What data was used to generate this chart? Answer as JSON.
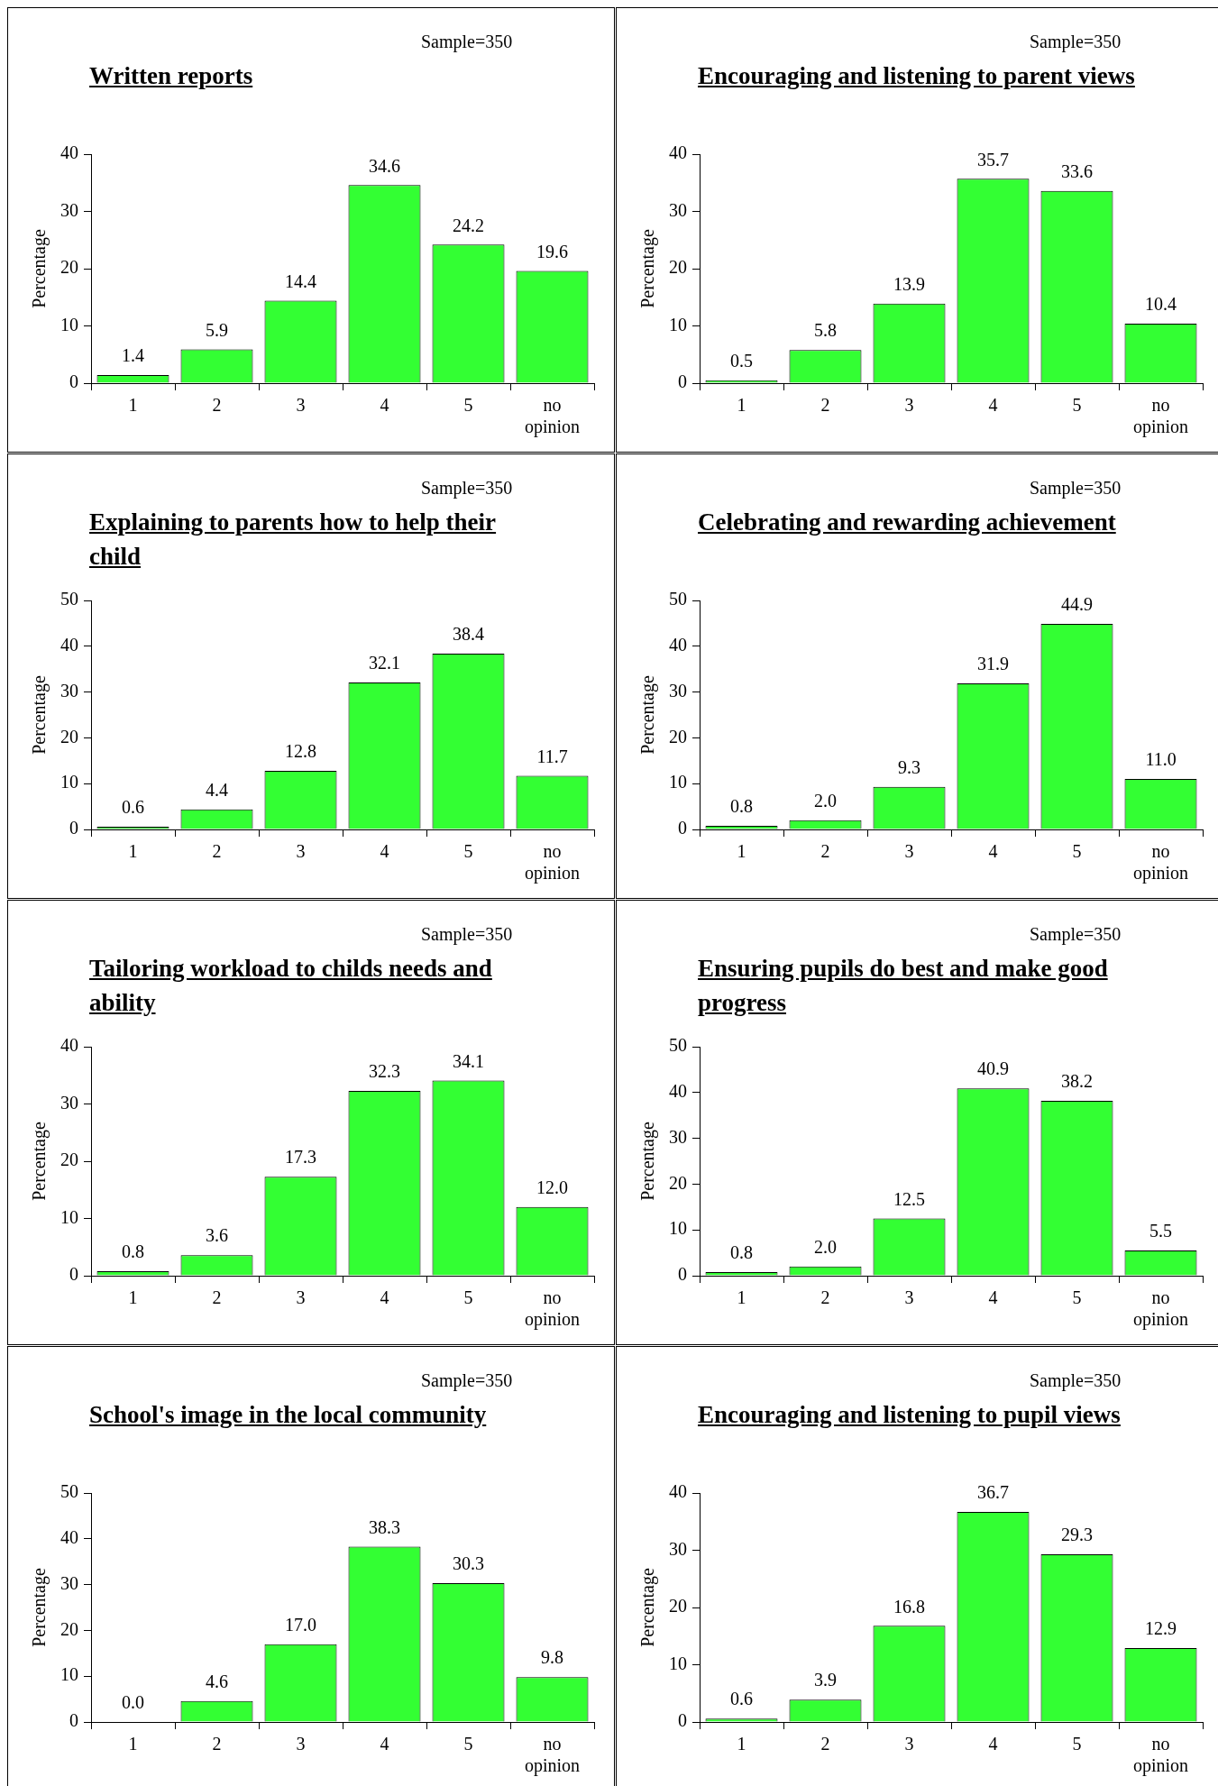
{
  "chart_data": [
    {
      "type": "bar",
      "title": "Written reports",
      "annotations": [
        "Sample=350"
      ],
      "ylabel": "Percentage",
      "categories": [
        "1",
        "2",
        "3",
        "4",
        "5",
        "no opinion"
      ],
      "values": [
        1.4,
        5.9,
        14.4,
        34.6,
        24.2,
        19.6
      ],
      "value_labels": [
        "1.4",
        "5.9",
        "14.4",
        "34.6",
        "24.2",
        "19.6"
      ],
      "color": "#33ff33",
      "ylim": [
        0,
        40
      ],
      "yticks": [
        0,
        10,
        20,
        30,
        40
      ]
    },
    {
      "type": "bar",
      "title": "Encouraging and listening to parent views",
      "annotations": [
        "Sample=350"
      ],
      "ylabel": "Percentage",
      "categories": [
        "1",
        "2",
        "3",
        "4",
        "5",
        "no opinion"
      ],
      "values": [
        0.5,
        5.8,
        13.9,
        35.7,
        33.6,
        10.4
      ],
      "value_labels": [
        "0.5",
        "5.8",
        "13.9",
        "35.7",
        "33.6",
        "10.4"
      ],
      "color": "#33ff33",
      "ylim": [
        0,
        40
      ],
      "yticks": [
        0,
        10,
        20,
        30,
        40
      ]
    },
    {
      "type": "bar",
      "title": "Explaining to parents how to help their child",
      "annotations": [
        "Sample=350"
      ],
      "ylabel": "Percentage",
      "categories": [
        "1",
        "2",
        "3",
        "4",
        "5",
        "no opinion"
      ],
      "values": [
        0.6,
        4.4,
        12.8,
        32.1,
        38.4,
        11.7
      ],
      "value_labels": [
        "0.6",
        "4.4",
        "12.8",
        "32.1",
        "38.4",
        "11.7"
      ],
      "color": "#33ff33",
      "ylim": [
        0,
        50
      ],
      "yticks": [
        0,
        10,
        20,
        30,
        40,
        50
      ]
    },
    {
      "type": "bar",
      "title": "Celebrating and rewarding achievement",
      "annotations": [
        "Sample=350"
      ],
      "ylabel": "Percentage",
      "categories": [
        "1",
        "2",
        "3",
        "4",
        "5",
        "no opinion"
      ],
      "values": [
        0.8,
        2.0,
        9.3,
        31.9,
        44.9,
        11.0
      ],
      "value_labels": [
        "0.8",
        "2.0",
        "9.3",
        "31.9",
        "44.9",
        "11.0"
      ],
      "color": "#33ff33",
      "ylim": [
        0,
        50
      ],
      "yticks": [
        0,
        10,
        20,
        30,
        40,
        50
      ]
    },
    {
      "type": "bar",
      "title": "Tailoring workload to childs needs and ability",
      "annotations": [
        "Sample=350"
      ],
      "ylabel": "Percentage",
      "categories": [
        "1",
        "2",
        "3",
        "4",
        "5",
        "no opinion"
      ],
      "values": [
        0.8,
        3.6,
        17.3,
        32.3,
        34.1,
        12.0
      ],
      "value_labels": [
        "0.8",
        "3.6",
        "17.3",
        "32.3",
        "34.1",
        "12.0"
      ],
      "color": "#33ff33",
      "ylim": [
        0,
        40
      ],
      "yticks": [
        0,
        10,
        20,
        30,
        40
      ]
    },
    {
      "type": "bar",
      "title": "Ensuring pupils do best and make good progress",
      "annotations": [
        "Sample=350"
      ],
      "ylabel": "Percentage",
      "categories": [
        "1",
        "2",
        "3",
        "4",
        "5",
        "no opinion"
      ],
      "values": [
        0.8,
        2.0,
        12.5,
        40.9,
        38.2,
        5.5
      ],
      "value_labels": [
        "0.8",
        "2.0",
        "12.5",
        "40.9",
        "38.2",
        "5.5"
      ],
      "color": "#33ff33",
      "ylim": [
        0,
        50
      ],
      "yticks": [
        0,
        10,
        20,
        30,
        40,
        50
      ]
    },
    {
      "type": "bar",
      "title": "School's image in the local community",
      "annotations": [
        "Sample=350"
      ],
      "ylabel": "Percentage",
      "categories": [
        "1",
        "2",
        "3",
        "4",
        "5",
        "no opinion"
      ],
      "values": [
        0.0,
        4.6,
        17.0,
        38.3,
        30.3,
        9.8
      ],
      "value_labels": [
        "0.0",
        "4.6",
        "17.0",
        "38.3",
        "30.3",
        "9.8"
      ],
      "color": "#33ff33",
      "ylim": [
        0,
        50
      ],
      "yticks": [
        0,
        10,
        20,
        30,
        40,
        50
      ]
    },
    {
      "type": "bar",
      "title": "Encouraging and listening to pupil views",
      "annotations": [
        "Sample=350"
      ],
      "ylabel": "Percentage",
      "categories": [
        "1",
        "2",
        "3",
        "4",
        "5",
        "no opinion"
      ],
      "values": [
        0.6,
        3.9,
        16.8,
        36.7,
        29.3,
        12.9
      ],
      "value_labels": [
        "0.6",
        "3.9",
        "16.8",
        "36.7",
        "29.3",
        "12.9"
      ],
      "color": "#33ff33",
      "ylim": [
        0,
        40
      ],
      "yticks": [
        0,
        10,
        20,
        30,
        40
      ]
    }
  ]
}
